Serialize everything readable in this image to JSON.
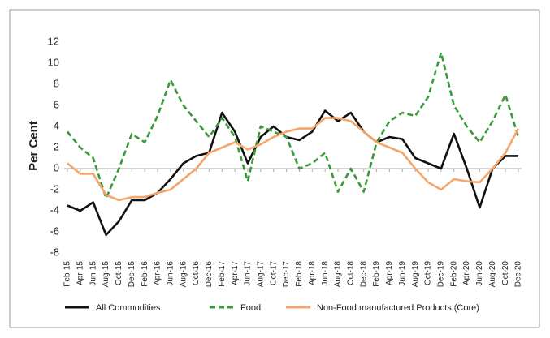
{
  "chart_data": {
    "type": "line",
    "y_label": "Per Cent",
    "categories": [
      "Feb-15",
      "Apr-15",
      "Jun-15",
      "Aug-15",
      "Oct-15",
      "Dec-15",
      "Feb-16",
      "Apr-16",
      "Jun-16",
      "Aug-16",
      "Oct-16",
      "Dec-16",
      "Feb-17",
      "Apr-17",
      "Jun-17",
      "Aug-17",
      "Oct-17",
      "Dec-17",
      "Feb-18",
      "Apr-18",
      "Jun-18",
      "Aug-18",
      "Oct-18",
      "Dec-18",
      "Feb-19",
      "Apr-19",
      "Jun-19",
      "Aug-19",
      "Oct-19",
      "Dec-19",
      "Feb-20",
      "Apr-20",
      "Jun-20",
      "Aug-20",
      "Oct-20",
      "Dec-20"
    ],
    "series": [
      {
        "name": "All Commodities",
        "color": "#111111",
        "dash": false,
        "values": [
          -3.5,
          -4,
          -3.2,
          -6.3,
          -5,
          -3,
          -3,
          -2.3,
          -1,
          0.5,
          1.2,
          1.5,
          5.3,
          3.5,
          0.5,
          3,
          4,
          3,
          2.7,
          3.5,
          5.5,
          4.5,
          5.3,
          3.5,
          2.5,
          3,
          2.8,
          1,
          0.5,
          0,
          3.3,
          0,
          -3.7,
          0,
          1.2,
          1.2
        ]
      },
      {
        "name": "Food",
        "color": "#3a9a3a",
        "dash": true,
        "values": [
          3.5,
          2,
          1,
          -2.8,
          0,
          3.3,
          2.5,
          5,
          8.4,
          6,
          4.5,
          3,
          4.8,
          3,
          -1.2,
          4,
          3.5,
          3,
          0,
          0.5,
          1.5,
          -2.2,
          0,
          -2.2,
          2.5,
          4.5,
          5.3,
          5,
          6.8,
          11,
          6,
          4,
          2.5,
          4.5,
          7,
          3
        ]
      },
      {
        "name": "Non-Food manufactured Products (Core)",
        "color": "#f5a56a",
        "dash": false,
        "values": [
          0.5,
          -0.5,
          -0.5,
          -2.5,
          -3,
          -2.7,
          -2.7,
          -2.3,
          -2,
          -1,
          0,
          1.5,
          2,
          2.5,
          1.8,
          2.3,
          3,
          3.5,
          3.8,
          3.8,
          4.8,
          4.8,
          4.5,
          3.5,
          2.5,
          2,
          1.5,
          0,
          -1.3,
          -2,
          -1,
          -1.2,
          -1.3,
          0,
          1.5,
          3.8
        ]
      }
    ],
    "ylim": [
      -8,
      12
    ],
    "yticks": [
      -8,
      -6,
      -4,
      -2,
      0,
      2,
      4,
      6,
      8,
      10,
      12
    ],
    "grid": false
  }
}
